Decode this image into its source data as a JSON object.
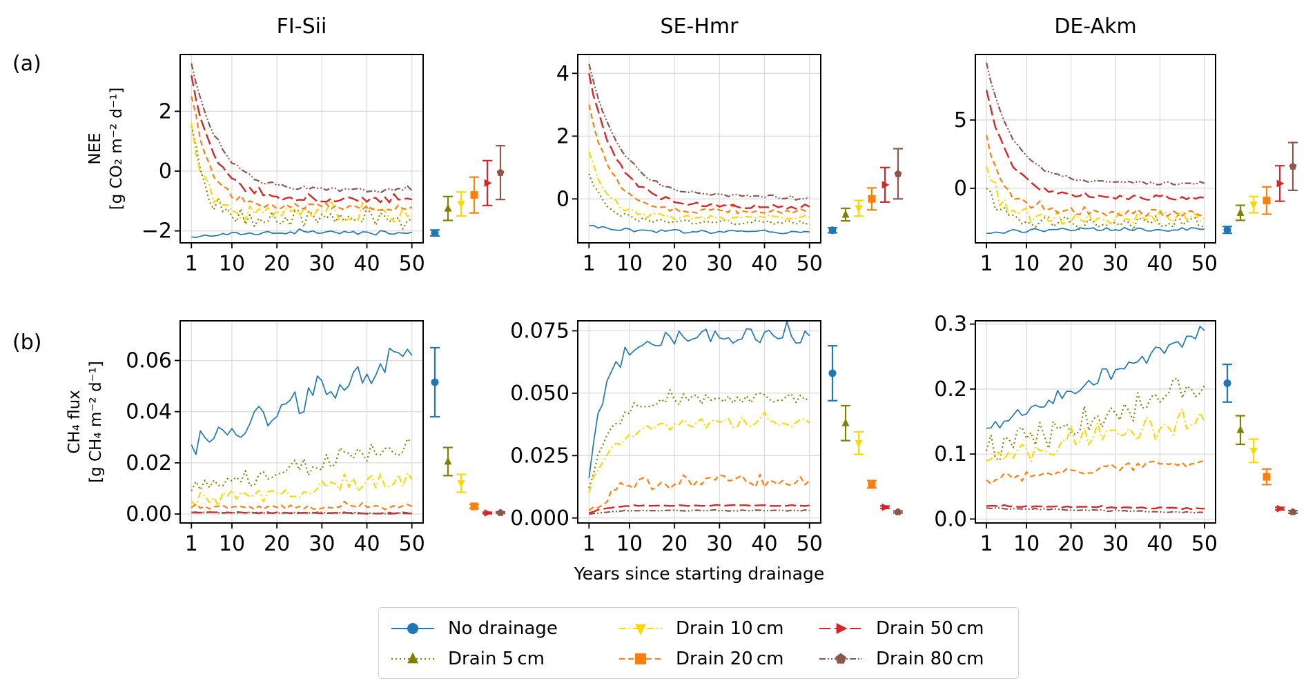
{
  "figure": {
    "row_labels": [
      "(a)",
      "(b)"
    ],
    "shared_xlabel": "Years since starting drainage"
  },
  "legend": [
    {
      "key": "none",
      "label": "No drainage",
      "color": "#1f77b4",
      "linestyle": "solid",
      "marker": "circle"
    },
    {
      "key": "d5",
      "label": "Drain 5 cm",
      "color": "#808000",
      "linestyle": "dotted",
      "marker": "triangle-up"
    },
    {
      "key": "d10",
      "label": "Drain 10 cm",
      "color": "#ffd700",
      "linestyle": "dashdot",
      "marker": "triangle-down"
    },
    {
      "key": "d20",
      "label": "Drain 20 cm",
      "color": "#ff7f0e",
      "linestyle": "dashed",
      "marker": "square"
    },
    {
      "key": "d50",
      "label": "Drain 50 cm",
      "color": "#d62728",
      "linestyle": "longdash",
      "marker": "triangle-right"
    },
    {
      "key": "d80",
      "label": "Drain 80 cm",
      "color": "#8c564b",
      "linestyle": "dashdotdot",
      "marker": "pentagon"
    }
  ],
  "chart_data": [
    {
      "type": "line",
      "row": "a",
      "title": "FI-Sii",
      "ylabel_line1": "NEE",
      "ylabel_line2": "[g CO₂ m⁻² d⁻¹]",
      "xlabel": "",
      "x_ticks": [
        1,
        10,
        20,
        30,
        40,
        50
      ],
      "xlim": [
        -1.5,
        52.5
      ],
      "y_ticks": [
        -2,
        0,
        2
      ],
      "y_tick_labels": [
        "−2",
        "0",
        "2"
      ],
      "ylim": [
        -2.4,
        3.9
      ],
      "grid": true,
      "series": [
        {
          "key": "none",
          "start": -2.2,
          "end": -2.05,
          "tau": 8,
          "noise": 0.06,
          "mean": -2.07,
          "err": 0.1
        },
        {
          "key": "d5",
          "start": 1.5,
          "end": -1.6,
          "tau": 3,
          "noise": 0.3,
          "mean": -1.25,
          "err": 0.4
        },
        {
          "key": "d10",
          "start": 1.6,
          "end": -1.45,
          "tau": 3,
          "noise": 0.25,
          "mean": -1.1,
          "err": 0.4
        },
        {
          "key": "d20",
          "start": 2.5,
          "end": -1.2,
          "tau": 4,
          "noise": 0.12,
          "mean": -0.8,
          "err": 0.6
        },
        {
          "key": "d50",
          "start": 3.2,
          "end": -0.95,
          "tau": 5,
          "noise": 0.1,
          "mean": -0.4,
          "err": 0.75
        },
        {
          "key": "d80",
          "start": 3.6,
          "end": -0.65,
          "tau": 6,
          "noise": 0.08,
          "mean": -0.05,
          "err": 0.9
        }
      ]
    },
    {
      "type": "line",
      "row": "a",
      "title": "SE-Hmr",
      "ylabel_line1": "",
      "ylabel_line2": "",
      "xlabel": "",
      "x_ticks": [
        1,
        10,
        20,
        30,
        40,
        50
      ],
      "xlim": [
        -1.5,
        52.5
      ],
      "y_ticks": [
        0,
        2,
        4
      ],
      "y_tick_labels": [
        "0",
        "2",
        "4"
      ],
      "ylim": [
        -1.4,
        4.6
      ],
      "grid": true,
      "series": [
        {
          "key": "none",
          "start": -0.85,
          "end": -1.05,
          "tau": 8,
          "noise": 0.06,
          "mean": -1.0,
          "err": 0.08
        },
        {
          "key": "d5",
          "start": 0.8,
          "end": -0.75,
          "tau": 4,
          "noise": 0.08,
          "mean": -0.5,
          "err": 0.2
        },
        {
          "key": "d10",
          "start": 1.5,
          "end": -0.6,
          "tau": 4,
          "noise": 0.08,
          "mean": -0.3,
          "err": 0.25
        },
        {
          "key": "d20",
          "start": 3.0,
          "end": -0.4,
          "tau": 5,
          "noise": 0.08,
          "mean": 0.0,
          "err": 0.35
        },
        {
          "key": "d50",
          "start": 4.0,
          "end": -0.25,
          "tau": 6,
          "noise": 0.07,
          "mean": 0.45,
          "err": 0.55
        },
        {
          "key": "d80",
          "start": 4.3,
          "end": 0.05,
          "tau": 7,
          "noise": 0.06,
          "mean": 0.8,
          "err": 0.8
        }
      ]
    },
    {
      "type": "line",
      "row": "a",
      "title": "DE-Akm",
      "ylabel_line1": "",
      "ylabel_line2": "",
      "xlabel": "",
      "x_ticks": [
        1,
        10,
        20,
        30,
        40,
        50
      ],
      "xlim": [
        -1.5,
        52.5
      ],
      "y_ticks": [
        0,
        5
      ],
      "y_tick_labels": [
        "0",
        "5"
      ],
      "ylim": [
        -4.0,
        9.8
      ],
      "grid": true,
      "series": [
        {
          "key": "none",
          "start": -3.3,
          "end": -3.0,
          "tau": 8,
          "noise": 0.15,
          "mean": -3.05,
          "err": 0.25
        },
        {
          "key": "d5",
          "start": 0.0,
          "end": -2.6,
          "tau": 3,
          "noise": 0.5,
          "mean": -1.8,
          "err": 0.55
        },
        {
          "key": "d10",
          "start": 1.6,
          "end": -2.2,
          "tau": 3,
          "noise": 0.5,
          "mean": -1.2,
          "err": 0.6
        },
        {
          "key": "d20",
          "start": 3.9,
          "end": -1.8,
          "tau": 4,
          "noise": 0.3,
          "mean": -0.9,
          "err": 1.0
        },
        {
          "key": "d50",
          "start": 7.2,
          "end": -0.7,
          "tau": 5,
          "noise": 0.15,
          "mean": 0.35,
          "err": 1.3
        },
        {
          "key": "d80",
          "start": 9.2,
          "end": 0.35,
          "tau": 6,
          "noise": 0.12,
          "mean": 1.6,
          "err": 1.75
        }
      ]
    },
    {
      "type": "line",
      "row": "b",
      "title": "",
      "ylabel_line1": "CH₄ flux",
      "ylabel_line2": "[g CH₄ m⁻² d⁻¹]",
      "xlabel": "",
      "x_ticks": [
        1,
        10,
        20,
        30,
        40,
        50
      ],
      "xlim": [
        -1.5,
        52.5
      ],
      "y_ticks": [
        0.0,
        0.02,
        0.04,
        0.06
      ],
      "y_tick_labels": [
        "0.00",
        "0.02",
        "0.04",
        "0.06"
      ],
      "ylim": [
        -0.0035,
        0.0755
      ],
      "grid": true,
      "series": [
        {
          "key": "none",
          "start": 0.027,
          "end": 0.062,
          "tau": -1,
          "noise": 0.005,
          "mean": 0.0515,
          "err": 0.0135
        },
        {
          "key": "d5",
          "start": 0.009,
          "end": 0.028,
          "tau": -1,
          "noise": 0.004,
          "mean": 0.0205,
          "err": 0.0055
        },
        {
          "key": "d10",
          "start": 0.005,
          "end": 0.0135,
          "tau": -1,
          "noise": 0.003,
          "mean": 0.012,
          "err": 0.0035
        },
        {
          "key": "d20",
          "start": 0.0025,
          "end": 0.003,
          "tau": -1,
          "noise": 0.0008,
          "mean": 0.003,
          "err": 0.0008
        },
        {
          "key": "d50",
          "start": 0.0006,
          "end": 0.0002,
          "tau": -1,
          "noise": 0.0002,
          "mean": 0.0004,
          "err": 0.0003
        },
        {
          "key": "d80",
          "start": 0.0006,
          "end": 0.0003,
          "tau": -1,
          "noise": 0.0002,
          "mean": 0.0005,
          "err": 0.0003
        }
      ]
    },
    {
      "type": "line",
      "row": "b",
      "title": "",
      "ylabel_line1": "",
      "ylabel_line2": "",
      "xlabel": "Years since starting drainage",
      "x_ticks": [
        1,
        10,
        20,
        30,
        40,
        50
      ],
      "xlim": [
        -1.5,
        52.5
      ],
      "y_ticks": [
        0.0,
        0.025,
        0.05,
        0.075
      ],
      "y_tick_labels": [
        "0.000",
        "0.025",
        "0.050",
        "0.075"
      ],
      "ylim": [
        -0.002,
        0.079
      ],
      "grid": true,
      "series": [
        {
          "key": "none",
          "start": 0.016,
          "end": 0.073,
          "tau": 4,
          "noise": 0.003,
          "mean": 0.058,
          "err": 0.011
        },
        {
          "key": "d5",
          "start": 0.012,
          "end": 0.048,
          "tau": 5,
          "noise": 0.002,
          "mean": 0.038,
          "err": 0.007
        },
        {
          "key": "d10",
          "start": 0.01,
          "end": 0.038,
          "tau": 5,
          "noise": 0.002,
          "mean": 0.03,
          "err": 0.0045
        },
        {
          "key": "d20",
          "start": 0.003,
          "end": 0.015,
          "tau": 6,
          "noise": 0.003,
          "mean": 0.0135,
          "err": 0.0015
        },
        {
          "key": "d50",
          "start": 0.002,
          "end": 0.005,
          "tau": 4,
          "noise": 0.0002,
          "mean": 0.0043,
          "err": 0.0005
        },
        {
          "key": "d80",
          "start": 0.0015,
          "end": 0.003,
          "tau": 5,
          "noise": 0.0002,
          "mean": 0.0024,
          "err": 0.0004
        }
      ]
    },
    {
      "type": "line",
      "row": "b",
      "title": "",
      "ylabel_line1": "",
      "ylabel_line2": "",
      "xlabel": "",
      "x_ticks": [
        1,
        10,
        20,
        30,
        40,
        50
      ],
      "xlim": [
        -1.5,
        52.5
      ],
      "y_ticks": [
        0.0,
        0.1,
        0.2,
        0.3
      ],
      "y_tick_labels": [
        "0.0",
        "0.1",
        "0.2",
        "0.3"
      ],
      "ylim": [
        -0.006,
        0.305
      ],
      "grid": true,
      "series": [
        {
          "key": "none",
          "start": 0.14,
          "end": 0.29,
          "tau": -1,
          "noise": 0.012,
          "mean": 0.209,
          "err": 0.029
        },
        {
          "key": "d5",
          "start": 0.105,
          "end": 0.205,
          "tau": -1,
          "noise": 0.025,
          "mean": 0.137,
          "err": 0.022
        },
        {
          "key": "d10",
          "start": 0.09,
          "end": 0.15,
          "tau": -1,
          "noise": 0.015,
          "mean": 0.105,
          "err": 0.018
        },
        {
          "key": "d20",
          "start": 0.06,
          "end": 0.09,
          "tau": -1,
          "noise": 0.008,
          "mean": 0.065,
          "err": 0.012
        },
        {
          "key": "d50",
          "start": 0.02,
          "end": 0.016,
          "tau": -1,
          "noise": 0.001,
          "mean": 0.016,
          "err": 0.002
        },
        {
          "key": "d80",
          "start": 0.017,
          "end": 0.01,
          "tau": -1,
          "noise": 0.001,
          "mean": 0.011,
          "err": 0.002
        }
      ]
    }
  ]
}
